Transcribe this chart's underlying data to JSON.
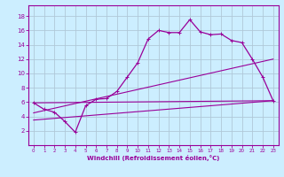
{
  "xlabel": "Windchill (Refroidissement éolien,°C)",
  "background_color": "#cceeff",
  "grid_color": "#b0c8d8",
  "line_color": "#990099",
  "xlim": [
    -0.5,
    23.5
  ],
  "ylim": [
    0,
    19.5
  ],
  "xticks": [
    0,
    1,
    2,
    3,
    4,
    5,
    6,
    7,
    8,
    9,
    10,
    11,
    12,
    13,
    14,
    15,
    16,
    17,
    18,
    19,
    20,
    21,
    22,
    23
  ],
  "yticks": [
    2,
    4,
    6,
    8,
    10,
    12,
    14,
    16,
    18
  ],
  "curve1_x": [
    0,
    1,
    2,
    3,
    4,
    5,
    6,
    7,
    8,
    9,
    10,
    11,
    12,
    13,
    14,
    15,
    16,
    17,
    18,
    19,
    20,
    21,
    22,
    23
  ],
  "curve1_y": [
    5.9,
    5.0,
    4.6,
    3.3,
    1.8,
    5.5,
    6.4,
    6.5,
    7.5,
    9.5,
    11.5,
    14.8,
    16.0,
    15.7,
    15.7,
    17.5,
    15.8,
    15.4,
    15.5,
    14.6,
    14.3,
    12.0,
    9.5,
    6.2
  ],
  "line1_x": [
    0,
    23
  ],
  "line1_y": [
    5.9,
    6.2
  ],
  "line2_x": [
    0,
    23
  ],
  "line2_y": [
    4.5,
    12.0
  ],
  "line3_x": [
    0,
    23
  ],
  "line3_y": [
    3.5,
    6.2
  ]
}
